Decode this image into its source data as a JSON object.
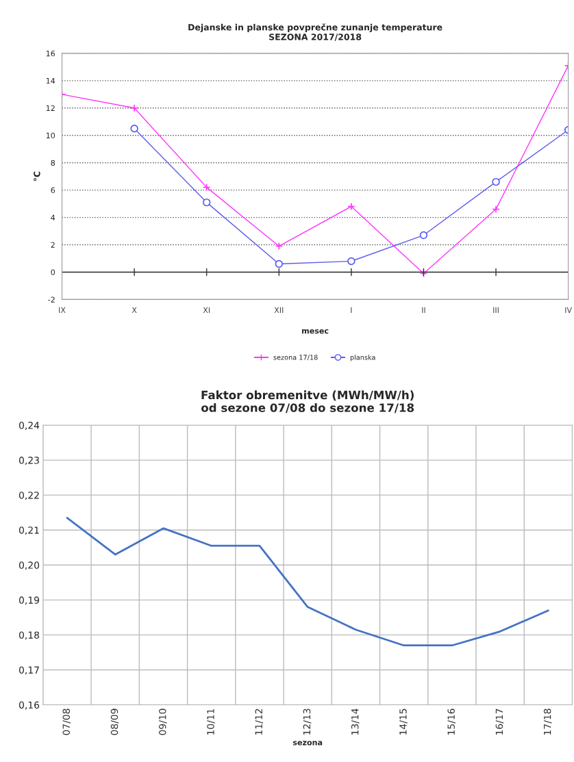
{
  "chart_data": [
    {
      "type": "line",
      "title": "Dejanske in planske povprečne zunanje temperature\nSEZONA 2017/2018",
      "xlabel": "mesec",
      "ylabel": "°C",
      "categories": [
        "IX",
        "X",
        "XI",
        "XII",
        "I",
        "II",
        "III",
        "IV"
      ],
      "series": [
        {
          "name": "sezona 17/18",
          "color": "#ff33ff",
          "marker": "cross",
          "values": [
            13.0,
            12.0,
            6.2,
            1.9,
            4.8,
            -0.1,
            4.6,
            15.1
          ]
        },
        {
          "name": "planska",
          "color": "#5b5bf0",
          "marker": "circle",
          "values": [
            null,
            10.5,
            5.1,
            0.6,
            0.8,
            2.7,
            6.6,
            10.4
          ]
        }
      ],
      "ylim": [
        -2,
        16
      ],
      "yticks": [
        -2,
        0,
        2,
        4,
        6,
        8,
        10,
        12,
        14,
        16
      ],
      "grid": "y",
      "legend": "bottom"
    },
    {
      "type": "line",
      "title": "Faktor obremenitve (MWh/MW/h)\nod sezone 07/08 do sezone 17/18",
      "xlabel": "sezona",
      "categories": [
        "07/08",
        "08/09",
        "09/10",
        "10/11",
        "11/12",
        "12/13",
        "13/14",
        "14/15",
        "15/16",
        "16/17",
        "17/18"
      ],
      "series": [
        {
          "color": "#4472c4",
          "values": [
            0.2135,
            0.203,
            0.2105,
            0.2055,
            0.2055,
            0.188,
            0.1815,
            0.177,
            0.177,
            0.181,
            0.187
          ]
        }
      ],
      "ylim": [
        0.16,
        0.24
      ],
      "yticks": [
        {
          "value": 0.16,
          "label": "0,16"
        },
        {
          "value": 0.17,
          "label": "0,17"
        },
        {
          "value": 0.18,
          "label": "0,18"
        },
        {
          "value": 0.19,
          "label": "0,19"
        },
        {
          "value": 0.2,
          "label": "0,20"
        },
        {
          "value": 0.21,
          "label": "0,21"
        },
        {
          "value": 0.22,
          "label": "0,22"
        },
        {
          "value": 0.23,
          "label": "0,23"
        },
        {
          "value": 0.24,
          "label": "0,24"
        }
      ],
      "grid": true
    }
  ]
}
